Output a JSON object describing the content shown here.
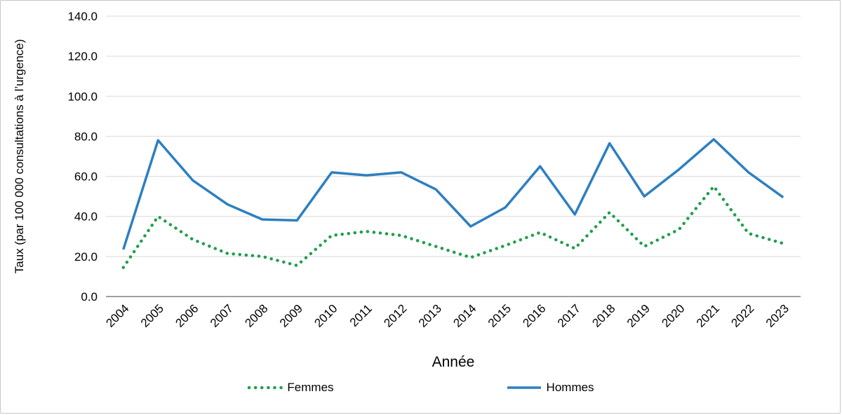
{
  "chart_data": {
    "type": "line",
    "title": "",
    "xlabel": "Année",
    "ylabel": "Taux (par 100 000 consultations à l’urgence)",
    "categories": [
      "2004",
      "2005",
      "2006",
      "2007",
      "2008",
      "2009",
      "2010",
      "2011",
      "2012",
      "2013",
      "2014",
      "2015",
      "2016",
      "2017",
      "2018",
      "2019",
      "2020",
      "2021",
      "2022",
      "2023"
    ],
    "series": [
      {
        "name": "Femmes",
        "style": "dotted",
        "color": "#1f9e4e",
        "values": [
          14.5,
          40.0,
          28.5,
          21.5,
          20.0,
          15.5,
          30.5,
          32.5,
          30.5,
          25.0,
          19.5,
          25.5,
          32.0,
          24.0,
          42.0,
          25.0,
          33.5,
          55.0,
          31.5,
          26.5
        ]
      },
      {
        "name": "Hommes",
        "style": "solid",
        "color": "#2d7fc1",
        "values": [
          23.5,
          78.0,
          58.0,
          46.0,
          38.5,
          38.0,
          62.0,
          60.5,
          62.0,
          53.5,
          35.0,
          44.5,
          65.0,
          41.0,
          76.5,
          50.0,
          63.5,
          78.5,
          62.0,
          49.5
        ]
      }
    ],
    "ylim": [
      0,
      140
    ],
    "ytick_step": 20,
    "ytick_decimals": 1,
    "grid": "horizontal",
    "legend_position": "bottom",
    "colors": {
      "grid": "#d9d9d9",
      "axis": "#808080",
      "text": "#000000"
    }
  }
}
